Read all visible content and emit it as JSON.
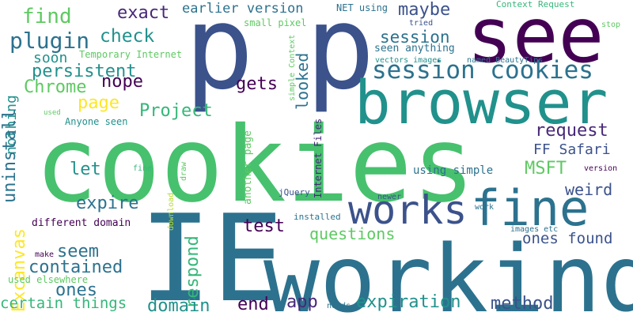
{
  "words": [
    {
      "text": "cookies",
      "color": "#47c16e"
    },
    {
      "text": "IE",
      "color": "#2c728e"
    },
    {
      "text": "working",
      "color": "#2c728e"
    },
    {
      "text": "p",
      "color": "#3b528b"
    },
    {
      "text": "p",
      "color": "#3b528b"
    },
    {
      "text": "see",
      "color": "#440154"
    },
    {
      "text": "browser",
      "color": "#21918c"
    },
    {
      "text": "fine",
      "color": "#2c728e"
    },
    {
      "text": "works",
      "color": "#3b528b"
    },
    {
      "text": "session cookies",
      "color": "#2c728e"
    },
    {
      "text": "find",
      "color": "#5ec962"
    },
    {
      "text": "exact",
      "color": "#482878"
    },
    {
      "text": "earlier version",
      "color": "#2c728e"
    },
    {
      "text": "maybe",
      "color": "#3b528b"
    },
    {
      "text": "NET using",
      "color": "#2c728e"
    },
    {
      "text": "Context Request",
      "color": "#35b779"
    },
    {
      "text": "plugin",
      "color": "#2c728e"
    },
    {
      "text": "check",
      "color": "#21918c"
    },
    {
      "text": "small pixel",
      "color": "#5ec962"
    },
    {
      "text": "session",
      "color": "#2c728e"
    },
    {
      "text": "tried",
      "color": "#3b528b"
    },
    {
      "text": "stop",
      "color": "#5ec962"
    },
    {
      "text": "Temporary Internet",
      "color": "#5ec962"
    },
    {
      "text": "soon",
      "color": "#21918c"
    },
    {
      "text": "seen anything",
      "color": "#2c728e"
    },
    {
      "text": "vectors images",
      "color": "#21918c"
    },
    {
      "text": "named BeautyTips",
      "color": "#2c728e"
    },
    {
      "text": "persistent",
      "color": "#21918c"
    },
    {
      "text": "looked",
      "color": "#2c728e"
    },
    {
      "text": "Chrome",
      "color": "#5ec962"
    },
    {
      "text": "nope",
      "color": "#440154"
    },
    {
      "text": "gets",
      "color": "#440154"
    },
    {
      "text": "simple Context",
      "color": "#5ec962"
    },
    {
      "text": "page",
      "color": "#fde725"
    },
    {
      "text": "Project",
      "color": "#35b779"
    },
    {
      "text": "used",
      "color": "#5ec962"
    },
    {
      "text": "Anyone seen",
      "color": "#21918c"
    },
    {
      "text": "nothing",
      "color": "#21918c"
    },
    {
      "text": "uninstall",
      "color": "#2c728e"
    },
    {
      "text": "request",
      "color": "#482878"
    },
    {
      "text": "FF Safari",
      "color": "#3b528b"
    },
    {
      "text": "let",
      "color": "#21918c"
    },
    {
      "text": "MSFT",
      "color": "#5ec962"
    },
    {
      "text": "Internet Files",
      "color": "#482878"
    },
    {
      "text": "fine",
      "color": "#35b779"
    },
    {
      "text": "draw",
      "color": "#5ec962"
    },
    {
      "text": "another page",
      "color": "#5ec962"
    },
    {
      "text": "using simple",
      "color": "#2c728e"
    },
    {
      "text": "version",
      "color": "#440154"
    },
    {
      "text": "weird",
      "color": "#3b528b"
    },
    {
      "text": "expire",
      "color": "#2c728e"
    },
    {
      "text": "download",
      "color": "#b5de2b"
    },
    {
      "text": "jQuery",
      "color": "#3b528b"
    },
    {
      "text": "newer",
      "color": "#3b528b"
    },
    {
      "text": "Excanvas",
      "color": "#fde725"
    },
    {
      "text": "different domain",
      "color": "#440154"
    },
    {
      "text": "test",
      "color": "#440154"
    },
    {
      "text": "work",
      "color": "#2c728e"
    },
    {
      "text": "installed",
      "color": "#2c728e"
    },
    {
      "text": "questions",
      "color": "#5ec962"
    },
    {
      "text": "seem",
      "color": "#2c728e"
    },
    {
      "text": "respond",
      "color": "#35b779"
    },
    {
      "text": "images etc",
      "color": "#2c728e"
    },
    {
      "text": "ones found",
      "color": "#3b528b"
    },
    {
      "text": "make",
      "color": "#440154"
    },
    {
      "text": "contained",
      "color": "#2c728e"
    },
    {
      "text": "used elsewhere",
      "color": "#5ec962"
    },
    {
      "text": "ones",
      "color": "#2c728e"
    },
    {
      "text": "end",
      "color": "#440154"
    },
    {
      "text": "app",
      "color": "#482878"
    },
    {
      "text": "expiration",
      "color": "#21918c"
    },
    {
      "text": "method",
      "color": "#3b528b"
    },
    {
      "text": "certain things",
      "color": "#35b779"
    },
    {
      "text": "domain",
      "color": "#21918c"
    },
    {
      "text": "needs",
      "color": "#2c728e"
    }
  ]
}
